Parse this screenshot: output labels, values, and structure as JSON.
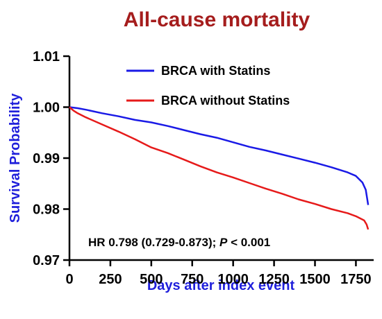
{
  "chart_data": {
    "type": "line",
    "title": "All-cause mortality",
    "xlabel": "Days after index event",
    "ylabel": "Survival Probability",
    "xlim": [
      0,
      1850
    ],
    "ylim": [
      0.97,
      1.01
    ],
    "x_ticks": [
      "0",
      "250",
      "500",
      "750",
      "1000",
      "1250",
      "1500",
      "1750"
    ],
    "y_ticks": [
      "0.97",
      "0.98",
      "0.99",
      "1.00",
      "1.01"
    ],
    "legend_position": "top-right",
    "annotation": {
      "prefix": "HR 0.798 (0.729-0.873); ",
      "p_symbol": "P",
      "suffix": " < 0.001"
    },
    "colors": {
      "title": "#A51D1D",
      "axis_label": "#1F1FDB",
      "series_with": "#1A1AE6",
      "series_without": "#E61A1A"
    },
    "series": [
      {
        "name": "BRCA with Statins",
        "color": "#1A1AE6",
        "x": [
          0,
          50,
          100,
          200,
          300,
          400,
          500,
          600,
          700,
          800,
          900,
          1000,
          1100,
          1200,
          1300,
          1400,
          1500,
          1600,
          1700,
          1750,
          1790,
          1810,
          1825
        ],
        "y": [
          1.0,
          0.9998,
          0.9995,
          0.9988,
          0.9982,
          0.9975,
          0.997,
          0.9963,
          0.9955,
          0.9947,
          0.994,
          0.9931,
          0.9922,
          0.9915,
          0.9907,
          0.9899,
          0.9891,
          0.9882,
          0.9872,
          0.9865,
          0.9852,
          0.9838,
          0.9808
        ]
      },
      {
        "name": "BRCA without Statins",
        "color": "#E61A1A",
        "x": [
          0,
          25,
          50,
          100,
          200,
          300,
          400,
          500,
          600,
          700,
          800,
          900,
          1000,
          1100,
          1200,
          1300,
          1400,
          1500,
          1600,
          1700,
          1750,
          1800,
          1815,
          1825
        ],
        "y": [
          1.0,
          0.9993,
          0.9988,
          0.998,
          0.9966,
          0.9952,
          0.9937,
          0.9921,
          0.991,
          0.9897,
          0.9884,
          0.9872,
          0.9862,
          0.9851,
          0.984,
          0.983,
          0.9819,
          0.981,
          0.98,
          0.9792,
          0.9786,
          0.9778,
          0.977,
          0.976
        ]
      }
    ]
  }
}
